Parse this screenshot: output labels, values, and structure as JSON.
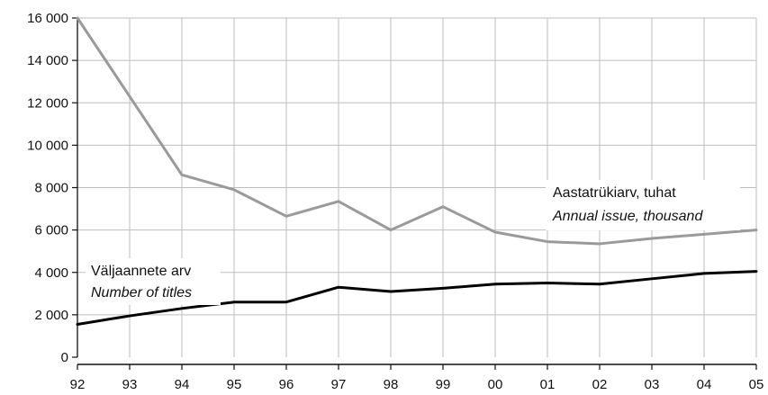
{
  "chart_data": {
    "type": "line",
    "x": [
      "92",
      "93",
      "94",
      "95",
      "96",
      "97",
      "98",
      "99",
      "00",
      "01",
      "02",
      "03",
      "04",
      "05"
    ],
    "ylim": [
      0,
      16000
    ],
    "yticks": [
      0,
      2000,
      4000,
      6000,
      8000,
      10000,
      12000,
      14000,
      16000
    ],
    "ytick_labels": [
      "0",
      "2 000",
      "4 000",
      "6 000",
      "8 000",
      "10 000",
      "12 000",
      "14 000",
      "16 000"
    ],
    "grid": true,
    "series": [
      {
        "name": "Aastatrükiarv, tuhat",
        "name_en": "Annual issue, thousand",
        "color": "#9a9a9a",
        "values": [
          16000,
          12300,
          8600,
          7900,
          6650,
          7350,
          6000,
          7100,
          5900,
          5450,
          5350,
          5600,
          5800,
          6000
        ]
      },
      {
        "name": "Väljaannete arv",
        "name_en": "Number of titles",
        "color": "#000000",
        "values": [
          1550,
          1950,
          2300,
          2600,
          2600,
          3300,
          3100,
          3250,
          3450,
          3500,
          3450,
          3700,
          3950,
          4050
        ]
      }
    ]
  }
}
